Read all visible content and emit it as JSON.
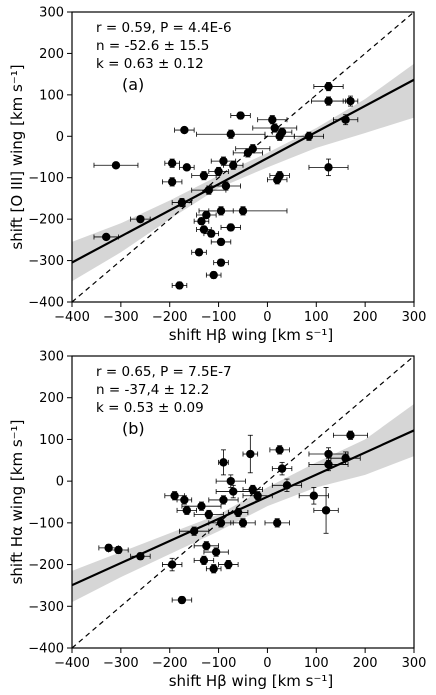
{
  "chart_data": [
    {
      "type": "scatter",
      "panel": "(a)",
      "xlabel": "shift Hβ wing [km s⁻¹]",
      "ylabel": "shift [O III] wing [km s⁻¹]",
      "xlim": [
        -400,
        300
      ],
      "ylim": [
        -400,
        300
      ],
      "xticks": [
        -400,
        -300,
        -200,
        -100,
        0,
        100,
        200,
        300
      ],
      "yticks": [
        -400,
        -300,
        -200,
        -100,
        0,
        100,
        200,
        300
      ],
      "annotations": [
        "r = 0.59, P = 4.4E-6",
        "n = -52.6 ± 15.5",
        "k = 0.63 ± 0.12"
      ],
      "fit": {
        "slope": 0.63,
        "intercept": -52.6
      },
      "band": {
        "x": [
          -400,
          -300,
          -200,
          -100,
          0,
          100,
          200,
          300
        ],
        "lower": [
          -350,
          -280,
          -200,
          -125,
          -75,
          -28,
          8,
          45
        ],
        "upper": [
          -255,
          -210,
          -155,
          -95,
          -40,
          20,
          90,
          175
        ]
      },
      "points": [
        {
          "x": -330,
          "y": -243,
          "xerr": 25,
          "yerr": 5
        },
        {
          "x": -310,
          "y": -70,
          "xerr": 45,
          "yerr": 5
        },
        {
          "x": -260,
          "y": -200,
          "xerr": 20,
          "yerr": 5
        },
        {
          "x": -195,
          "y": -65,
          "xerr": 15,
          "yerr": 10
        },
        {
          "x": -195,
          "y": -110,
          "xerr": 20,
          "yerr": 10
        },
        {
          "x": -175,
          "y": -160,
          "xerr": 20,
          "yerr": 10
        },
        {
          "x": -180,
          "y": -360,
          "xerr": 15,
          "yerr": 8
        },
        {
          "x": -170,
          "y": 15,
          "xerr": 20,
          "yerr": 5
        },
        {
          "x": -165,
          "y": -75,
          "xerr": 15,
          "yerr": 5
        },
        {
          "x": -140,
          "y": -280,
          "xerr": 15,
          "yerr": 8
        },
        {
          "x": -135,
          "y": -205,
          "xerr": 15,
          "yerr": 8
        },
        {
          "x": -130,
          "y": -95,
          "xerr": 25,
          "yerr": 10
        },
        {
          "x": -130,
          "y": -225,
          "xerr": 15,
          "yerr": 8
        },
        {
          "x": -125,
          "y": -190,
          "xerr": 20,
          "yerr": 8
        },
        {
          "x": -120,
          "y": -130,
          "xerr": 35,
          "yerr": 10
        },
        {
          "x": -115,
          "y": -235,
          "xerr": 15,
          "yerr": 8
        },
        {
          "x": -110,
          "y": -335,
          "xerr": 15,
          "yerr": 8
        },
        {
          "x": -100,
          "y": -85,
          "xerr": 20,
          "yerr": 10
        },
        {
          "x": -95,
          "y": -180,
          "xerr": 25,
          "yerr": 10
        },
        {
          "x": -95,
          "y": -255,
          "xerr": 20,
          "yerr": 8
        },
        {
          "x": -95,
          "y": -305,
          "xerr": 15,
          "yerr": 8
        },
        {
          "x": -90,
          "y": -60,
          "xerr": 25,
          "yerr": 10
        },
        {
          "x": -85,
          "y": -120,
          "xerr": 30,
          "yerr": 10
        },
        {
          "x": -75,
          "y": 5,
          "xerr": 70,
          "yerr": 10
        },
        {
          "x": -75,
          "y": -220,
          "xerr": 20,
          "yerr": 8
        },
        {
          "x": -70,
          "y": -70,
          "xerr": 20,
          "yerr": 10
        },
        {
          "x": -55,
          "y": 50,
          "xerr": 20,
          "yerr": 8
        },
        {
          "x": -50,
          "y": -180,
          "xerr": 90,
          "yerr": 10
        },
        {
          "x": -40,
          "y": -40,
          "xerr": 30,
          "yerr": 10
        },
        {
          "x": -30,
          "y": -30,
          "xerr": 35,
          "yerr": 10
        },
        {
          "x": 10,
          "y": 40,
          "xerr": 30,
          "yerr": 10
        },
        {
          "x": 15,
          "y": 20,
          "xerr": 45,
          "yerr": 10
        },
        {
          "x": 20,
          "y": -105,
          "xerr": 20,
          "yerr": 10
        },
        {
          "x": 25,
          "y": 0,
          "xerr": 30,
          "yerr": 10
        },
        {
          "x": 25,
          "y": -95,
          "xerr": 20,
          "yerr": 10
        },
        {
          "x": 30,
          "y": 10,
          "xerr": 20,
          "yerr": 10
        },
        {
          "x": 85,
          "y": 0,
          "xerr": 30,
          "yerr": 10
        },
        {
          "x": 125,
          "y": 120,
          "xerr": 30,
          "yerr": 10
        },
        {
          "x": 125,
          "y": 85,
          "xerr": 35,
          "yerr": 10
        },
        {
          "x": 125,
          "y": -75,
          "xerr": 40,
          "yerr": 20
        },
        {
          "x": 160,
          "y": 40,
          "xerr": 25,
          "yerr": 12
        },
        {
          "x": 170,
          "y": 85,
          "xerr": 15,
          "yerr": 12
        }
      ]
    },
    {
      "type": "scatter",
      "panel": "(b)",
      "xlabel": "shift Hβ wing [km s⁻¹]",
      "ylabel": "shift Hα wing [km s⁻¹]",
      "xlim": [
        -400,
        300
      ],
      "ylim": [
        -400,
        300
      ],
      "xticks": [
        -400,
        -300,
        -200,
        -100,
        0,
        100,
        200,
        300
      ],
      "yticks": [
        -400,
        -300,
        -200,
        -100,
        0,
        100,
        200,
        300
      ],
      "annotations": [
        "r = 0.65, P = 7.5E-7",
        "n = -37,4 ± 12.2",
        "k = 0.53 ± 0.09"
      ],
      "fit": {
        "slope": 0.53,
        "intercept": -37.4
      },
      "band": {
        "x": [
          -400,
          -300,
          -200,
          -100,
          0,
          100,
          200,
          300
        ],
        "lower": [
          -290,
          -230,
          -175,
          -120,
          -60,
          -15,
          15,
          60
        ],
        "upper": [
          -215,
          -170,
          -125,
          -80,
          -15,
          45,
          100,
          185
        ]
      },
      "points": [
        {
          "x": -325,
          "y": -160,
          "xerr": 20,
          "yerr": 8
        },
        {
          "x": -305,
          "y": -165,
          "xerr": 20,
          "yerr": 8
        },
        {
          "x": -260,
          "y": -180,
          "xerr": 20,
          "yerr": 8
        },
        {
          "x": -195,
          "y": -200,
          "xerr": 20,
          "yerr": 15
        },
        {
          "x": -190,
          "y": -35,
          "xerr": 20,
          "yerr": 10
        },
        {
          "x": -175,
          "y": -285,
          "xerr": 20,
          "yerr": 8
        },
        {
          "x": -170,
          "y": -45,
          "xerr": 15,
          "yerr": 10
        },
        {
          "x": -165,
          "y": -70,
          "xerr": 20,
          "yerr": 10
        },
        {
          "x": -150,
          "y": -120,
          "xerr": 30,
          "yerr": 10
        },
        {
          "x": -135,
          "y": -60,
          "xerr": 40,
          "yerr": 10
        },
        {
          "x": -130,
          "y": -190,
          "xerr": 20,
          "yerr": 10
        },
        {
          "x": -125,
          "y": -155,
          "xerr": 25,
          "yerr": 10
        },
        {
          "x": -120,
          "y": -80,
          "xerr": 30,
          "yerr": 10
        },
        {
          "x": -110,
          "y": -210,
          "xerr": 15,
          "yerr": 10
        },
        {
          "x": -105,
          "y": -170,
          "xerr": 25,
          "yerr": 10
        },
        {
          "x": -95,
          "y": -100,
          "xerr": 25,
          "yerr": 10
        },
        {
          "x": -90,
          "y": 45,
          "xerr": 10,
          "yerr": 30
        },
        {
          "x": -90,
          "y": -45,
          "xerr": 30,
          "yerr": 10
        },
        {
          "x": -80,
          "y": -200,
          "xerr": 20,
          "yerr": 10
        },
        {
          "x": -75,
          "y": 0,
          "xerr": 30,
          "yerr": 15
        },
        {
          "x": -70,
          "y": -25,
          "xerr": 35,
          "yerr": 15
        },
        {
          "x": -60,
          "y": -75,
          "xerr": 20,
          "yerr": 10
        },
        {
          "x": -50,
          "y": -100,
          "xerr": 25,
          "yerr": 10
        },
        {
          "x": -35,
          "y": 65,
          "xerr": 15,
          "yerr": 45
        },
        {
          "x": -30,
          "y": -20,
          "xerr": 20,
          "yerr": 10
        },
        {
          "x": -20,
          "y": -35,
          "xerr": 30,
          "yerr": 10
        },
        {
          "x": 20,
          "y": -100,
          "xerr": 25,
          "yerr": 10
        },
        {
          "x": 25,
          "y": 75,
          "xerr": 20,
          "yerr": 10
        },
        {
          "x": 30,
          "y": 30,
          "xerr": 20,
          "yerr": 15
        },
        {
          "x": 40,
          "y": -10,
          "xerr": 30,
          "yerr": 15
        },
        {
          "x": 95,
          "y": -35,
          "xerr": 30,
          "yerr": 20
        },
        {
          "x": 120,
          "y": -70,
          "xerr": 25,
          "yerr": 55
        },
        {
          "x": 125,
          "y": 65,
          "xerr": 40,
          "yerr": 15
        },
        {
          "x": 125,
          "y": 40,
          "xerr": 40,
          "yerr": 15
        },
        {
          "x": 160,
          "y": 55,
          "xerr": 30,
          "yerr": 15
        },
        {
          "x": 170,
          "y": 110,
          "xerr": 35,
          "yerr": 10
        }
      ]
    }
  ]
}
